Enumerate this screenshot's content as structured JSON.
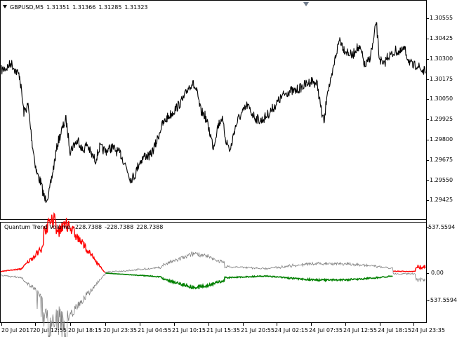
{
  "price_chart": {
    "symbol_label": "GBPUSD,M5",
    "ohlc_values": [
      "1.31351",
      "1.31366",
      "1.31285",
      "1.31323"
    ],
    "y_axis_ticks": [
      "1.30555",
      "1.30425",
      "1.30300",
      "1.30175",
      "1.30050",
      "1.29925",
      "1.29800",
      "1.29675",
      "1.29550",
      "1.29425"
    ],
    "line_color": "#000000"
  },
  "indicator": {
    "name": "Quantum Trend Volume",
    "values": [
      "-228.7388",
      "-228.7388",
      "228.7388"
    ],
    "y_axis_ticks": [
      "537.5594",
      "0.00",
      "-537.5594"
    ],
    "colors": {
      "bullish": "#ff0000",
      "bearish": "#008000",
      "gray": "#808080"
    }
  },
  "time_axis": {
    "labels": [
      "20 Jul 2017",
      "20 Jul 12:55",
      "20 Jul 18:15",
      "20 Jul 23:35",
      "21 Jul 04:55",
      "21 Jul 10:15",
      "21 Jul 15:35",
      "21 Jul 20:55",
      "24 Jul 02:15",
      "24 Jul 07:35",
      "24 Jul 12:55",
      "24 Jul 18:15",
      "24 Jul 23:35"
    ]
  }
}
